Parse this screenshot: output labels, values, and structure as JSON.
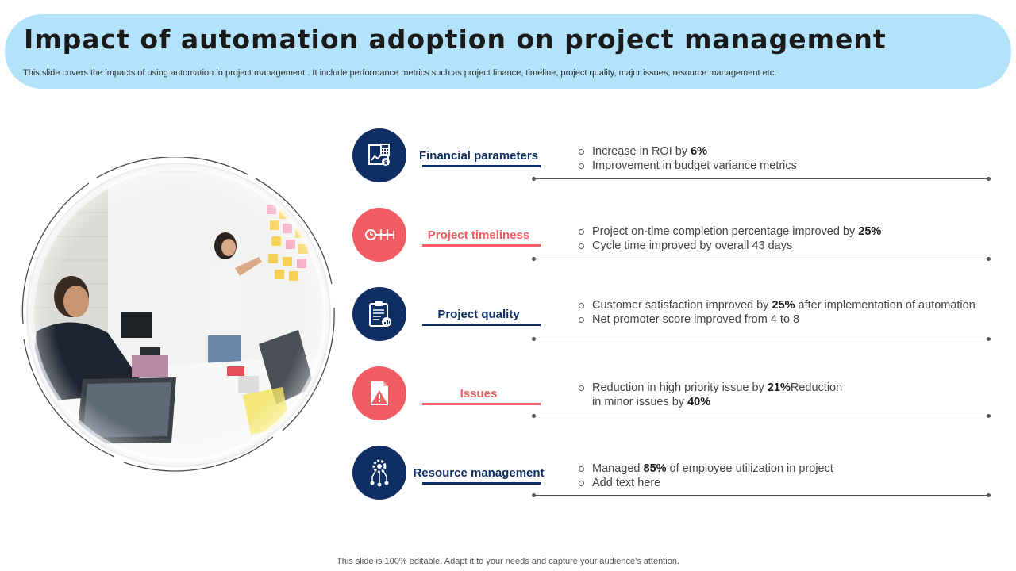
{
  "header": {
    "title": "Impact of automation adoption on project management",
    "subtitle": "This slide covers the impacts of using automation in project management . It include performance metrics such as project finance, timeline, project quality, major issues, resource management etc."
  },
  "colors": {
    "navy": "#0e2f63",
    "coral": "#f25c63",
    "header_bg": "#b3e2fb"
  },
  "rows": [
    {
      "title": "Financial parameters",
      "color": "navy",
      "icon": "calculator-icon",
      "bullets": [
        {
          "pre": "Increase in ROI by ",
          "bold": "6%",
          "post": ""
        },
        {
          "pre": "Improvement in budget variance metrics",
          "bold": "",
          "post": ""
        }
      ]
    },
    {
      "title": "Project timeliness",
      "color": "coral",
      "icon": "timeline-icon",
      "bullets": [
        {
          "pre": "Project on-time completion percentage improved by ",
          "bold": "25%",
          "post": ""
        },
        {
          "pre": "Cycle time improved by overall  43 days",
          "bold": "",
          "post": ""
        }
      ]
    },
    {
      "title": "Project quality",
      "color": "navy",
      "icon": "clipboard-chart-icon",
      "bullets": [
        {
          "pre": "Customer satisfaction improved by ",
          "bold": "25%",
          "post": " after implementation of automation"
        },
        {
          "pre": "Net promoter score improved from 4 to 8",
          "bold": "",
          "post": ""
        }
      ]
    },
    {
      "title": "Issues",
      "color": "coral",
      "icon": "warning-document-icon",
      "bullets": [
        {
          "pre": "Reduction in high priority issue by ",
          "bold": "21%",
          "post": "Reduction"
        },
        {
          "pre": "in minor issues by ",
          "bold": "40%",
          "post": ""
        }
      ]
    },
    {
      "title": "Resource management",
      "color": "navy",
      "icon": "gear-network-icon",
      "bullets": [
        {
          "pre": "Managed  ",
          "bold": "85%",
          "post": " of employee utilization  in project"
        },
        {
          "pre": "Add text here",
          "bold": "",
          "post": ""
        }
      ]
    }
  ],
  "footer": {
    "text": "This slide is 100% editable. Adapt it to your needs and capture your audience's attention."
  }
}
